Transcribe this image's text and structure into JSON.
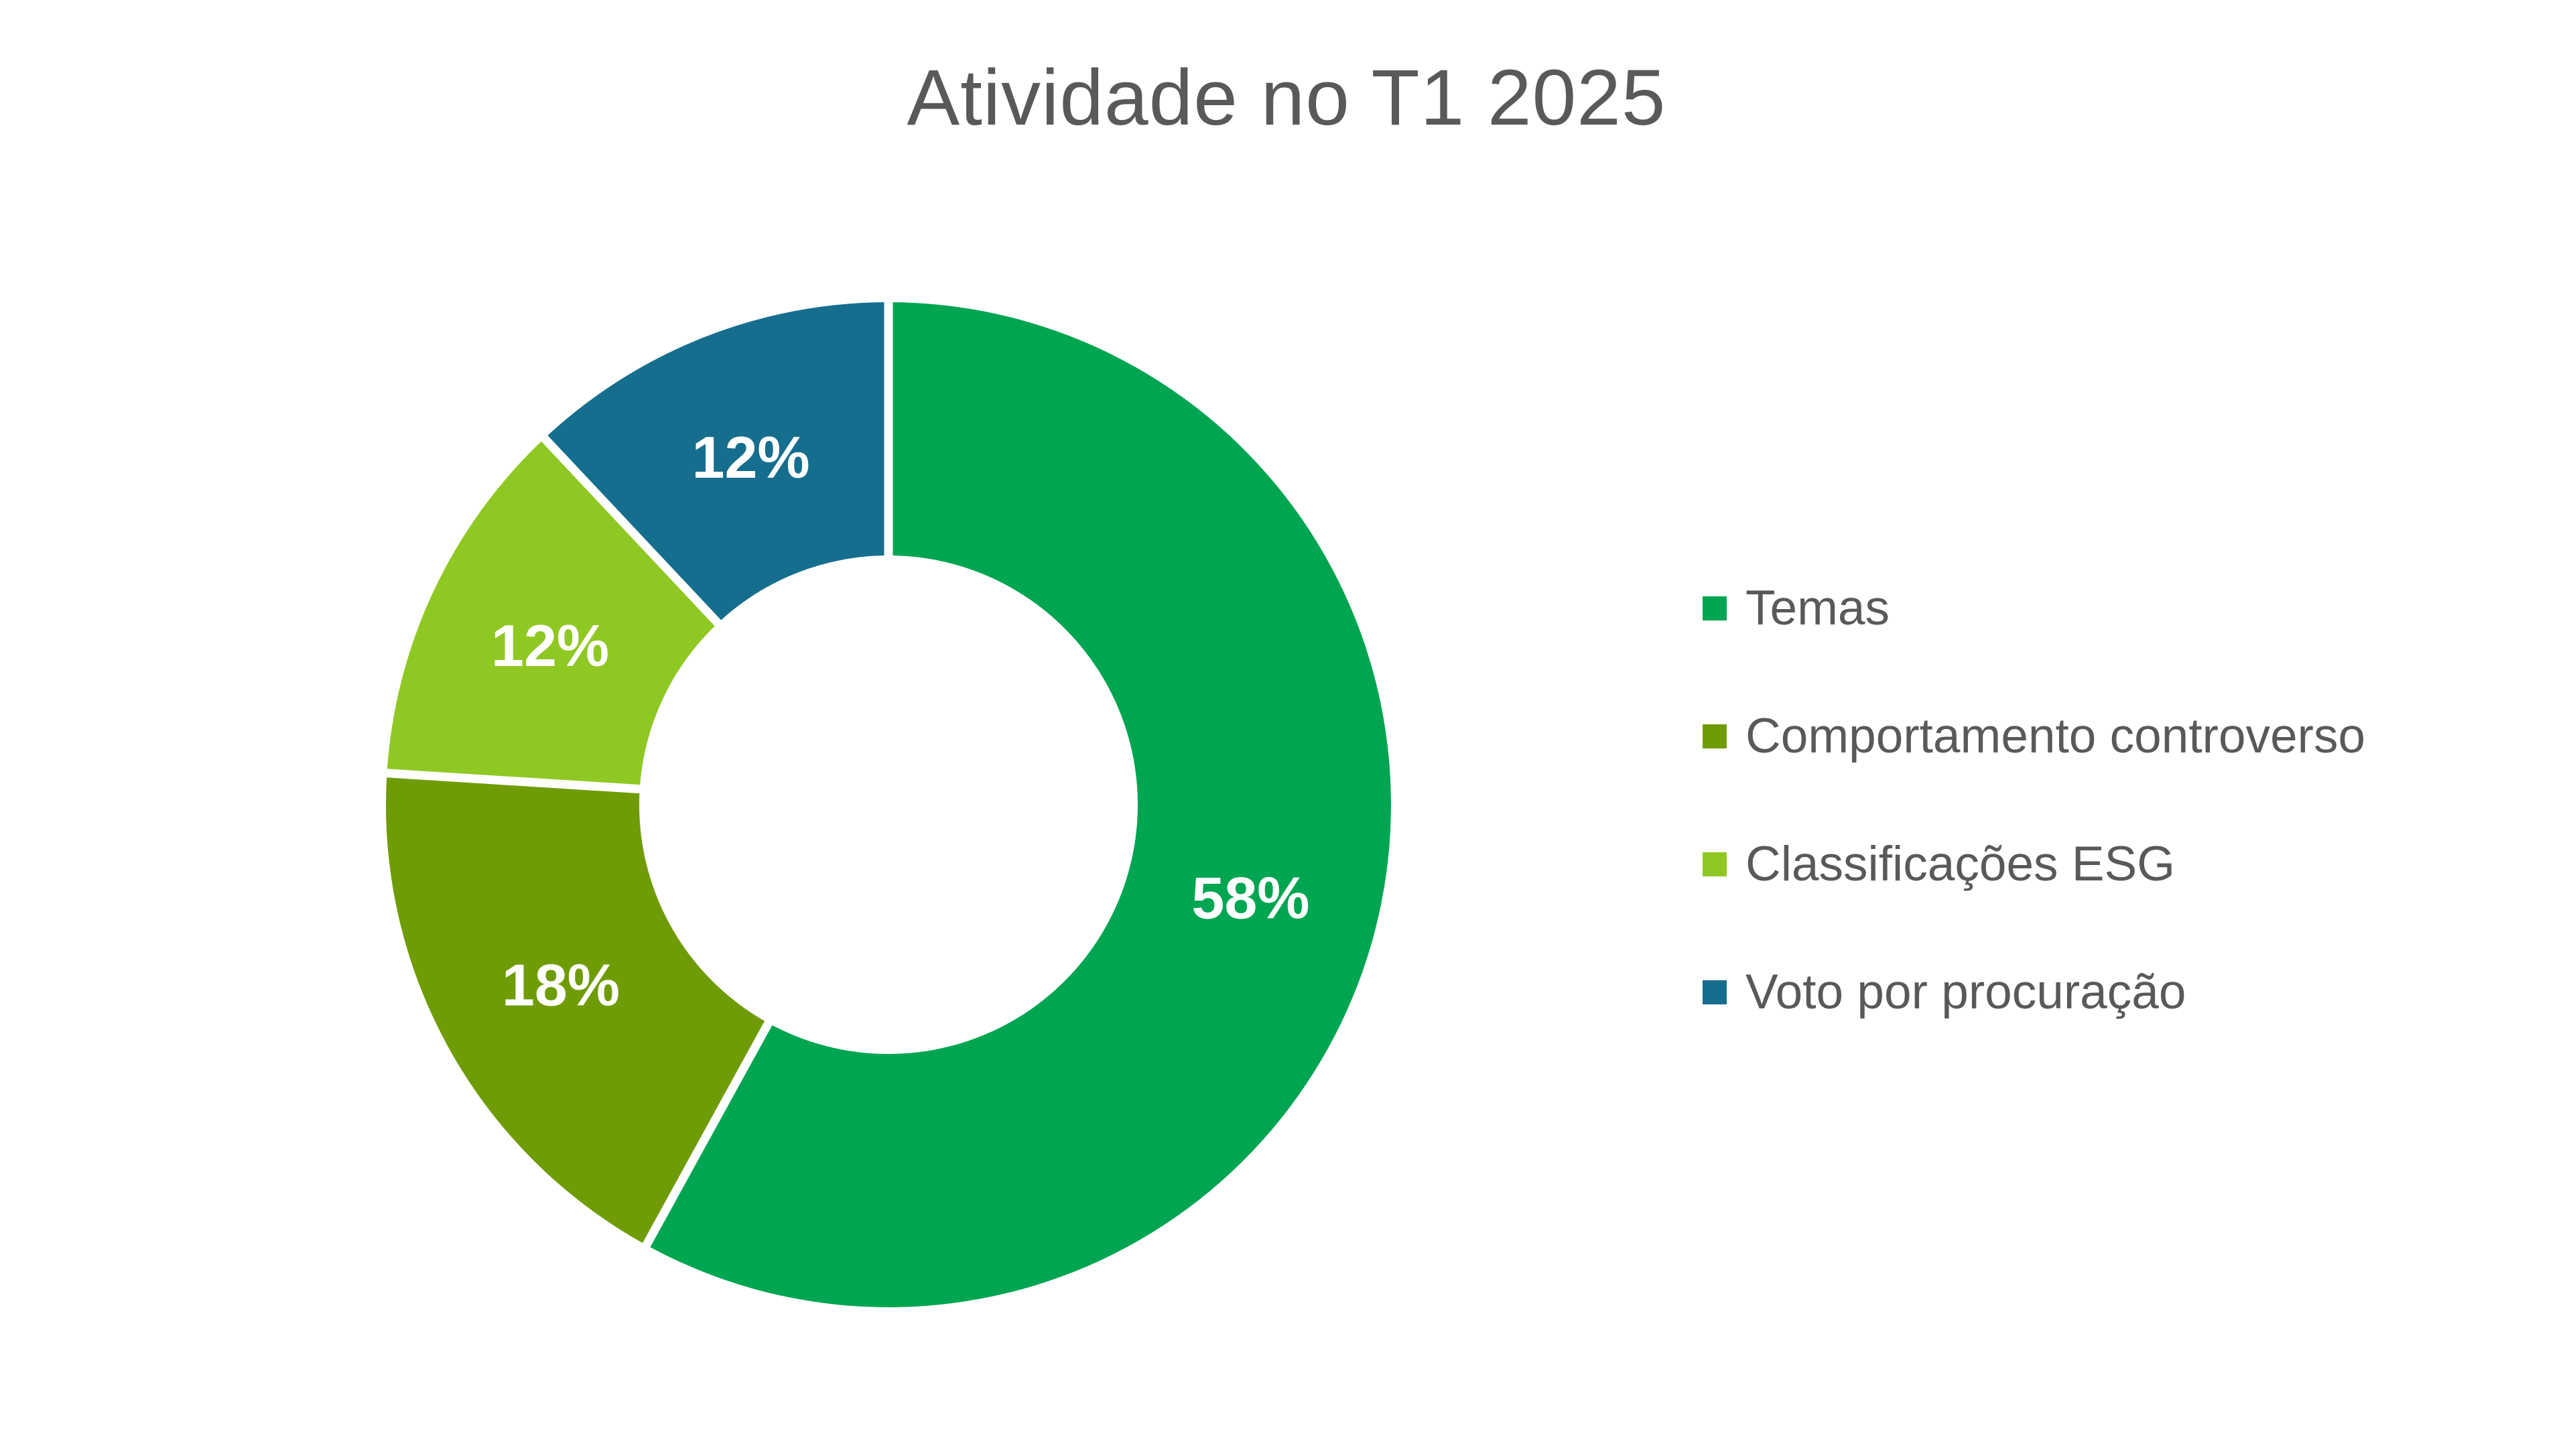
{
  "page": {
    "background": "#FFFFFF"
  },
  "title": {
    "text": "Atividade no T1 2025",
    "color": "#595959"
  },
  "chart_data": {
    "type": "pie",
    "subtype": "donut",
    "title": "Atividade no T1 2025",
    "unit": "%",
    "categories": [
      "Temas",
      "Comportamento controverso",
      "Classificações ESG",
      "Voto por procuração"
    ],
    "values": [
      58,
      18,
      12,
      12
    ],
    "slices": [
      {
        "label": "Temas",
        "value": 58,
        "display": "58%",
        "color": "#00A551"
      },
      {
        "label": "Comportamento controverso",
        "value": 18,
        "display": "18%",
        "color": "#6F9C06"
      },
      {
        "label": "Classificações ESG",
        "value": 12,
        "display": "12%",
        "color": "#8FC822"
      },
      {
        "label": "Voto por procuração",
        "value": 12,
        "display": "12%",
        "color": "#156E8E"
      }
    ],
    "start_angle_deg": 0,
    "direction": "clockwise",
    "donut_hole_ratio": 0.5,
    "separator_color": "#FFFFFF",
    "data_labels": "percent-inside",
    "data_label_color": "#FFFFFF",
    "legend_position": "right",
    "legend_text_color": "#595959"
  }
}
